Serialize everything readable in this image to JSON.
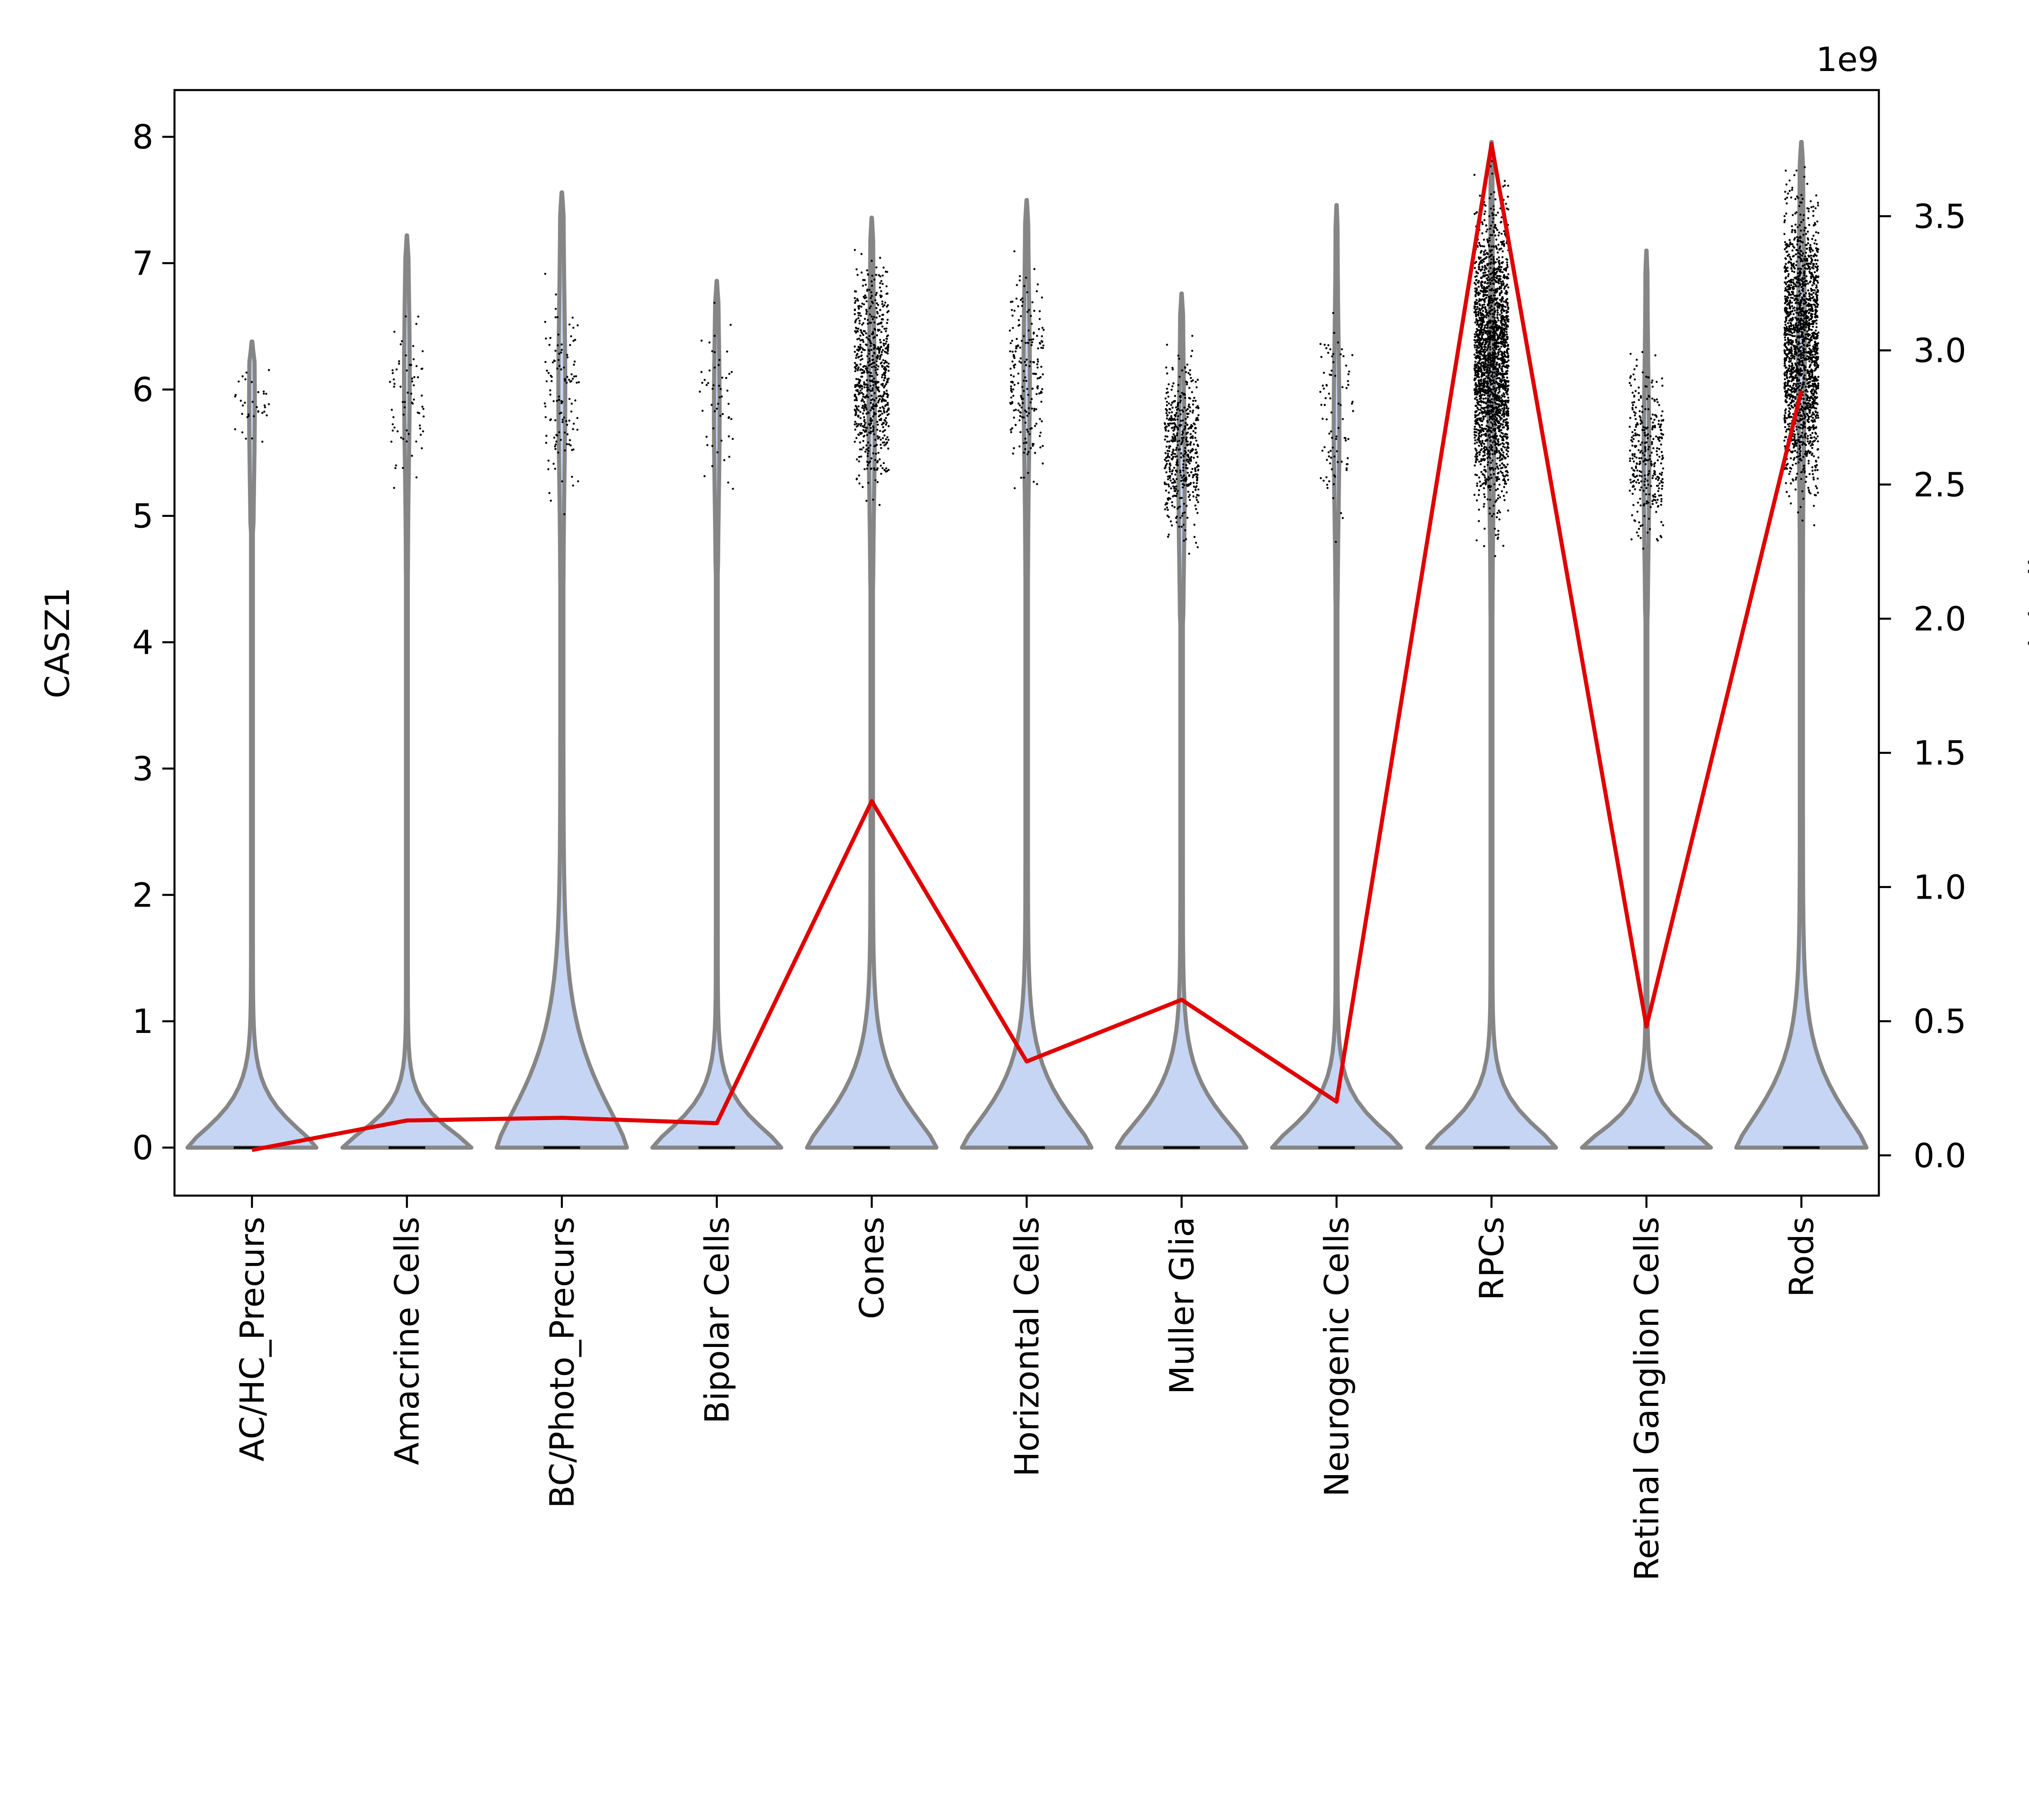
{
  "chart_data": {
    "type": "violin+line",
    "categories": [
      "AC/HC_Precurs",
      "Amacrine Cells",
      "BC/Photo_Precurs",
      "Bipolar Cells",
      "Cones",
      "Horizontal Cells",
      "Muller Glia",
      "Neurogenic Cells",
      "RPCs",
      "Retinal Ganglion Cells",
      "Rods"
    ],
    "left_axis": {
      "label": "CASZ1",
      "ylim": [
        -0.38,
        8.37
      ],
      "ticks": [
        0,
        1,
        2,
        3,
        4,
        5,
        6,
        7,
        8
      ]
    },
    "right_axis": {
      "label": "Pseudobulk",
      "offset_label": "1e9",
      "ylim": [
        -0.15,
        3.97
      ],
      "ticks": [
        "0.0",
        "0.5",
        "1.0",
        "1.5",
        "2.0",
        "2.5",
        "3.0",
        "3.5"
      ]
    },
    "violins": [
      {
        "max": 6.38,
        "half_width_at_zero": 0.41,
        "tail_width": 0.3,
        "neck": 0.6,
        "points_min": 5.3,
        "points_max": 6.4,
        "points_center": 5.9,
        "points_count": 35
      },
      {
        "max": 7.22,
        "half_width_at_zero": 0.41,
        "tail_width": 0.3,
        "neck": 0.5,
        "points_min": 5.0,
        "points_max": 6.9,
        "points_center": 6.1,
        "points_count": 70
      },
      {
        "max": 7.56,
        "half_width_at_zero": 0.41,
        "tail_width": 0.5,
        "neck": 1.3,
        "points_min": 4.9,
        "points_max": 7.0,
        "points_center": 6.0,
        "points_count": 120
      },
      {
        "max": 6.86,
        "half_width_at_zero": 0.41,
        "tail_width": 0.3,
        "neck": 0.6,
        "points_min": 5.0,
        "points_max": 6.8,
        "points_center": 5.8,
        "points_count": 55
      },
      {
        "max": 7.36,
        "half_width_at_zero": 0.41,
        "tail_width": 0.4,
        "neck": 0.9,
        "points_min": 4.9,
        "points_max": 7.3,
        "points_center": 5.8,
        "points_count": 700
      },
      {
        "max": 7.5,
        "half_width_at_zero": 0.41,
        "tail_width": 0.4,
        "neck": 0.9,
        "points_min": 4.9,
        "points_max": 7.3,
        "points_center": 6.1,
        "points_count": 220
      },
      {
        "max": 6.76,
        "half_width_at_zero": 0.41,
        "tail_width": 0.4,
        "neck": 0.8,
        "points_min": 4.6,
        "points_max": 6.5,
        "points_center": 5.3,
        "points_count": 500
      },
      {
        "max": 7.46,
        "half_width_at_zero": 0.41,
        "tail_width": 0.3,
        "neck": 0.6,
        "points_min": 4.7,
        "points_max": 6.9,
        "points_center": 5.7,
        "points_count": 90
      },
      {
        "max": 7.96,
        "half_width_at_zero": 0.41,
        "tail_width": 0.3,
        "neck": 0.6,
        "points_min": 4.6,
        "points_max": 7.9,
        "points_center": 5.8,
        "points_count": 2200
      },
      {
        "max": 7.1,
        "half_width_at_zero": 0.41,
        "tail_width": 0.3,
        "neck": 0.5,
        "points_min": 4.6,
        "points_max": 6.5,
        "points_center": 5.4,
        "points_count": 330
      },
      {
        "max": 7.96,
        "half_width_at_zero": 0.41,
        "tail_width": 0.5,
        "neck": 1.0,
        "points_min": 4.8,
        "points_max": 7.9,
        "points_center": 6.3,
        "points_count": 1800
      }
    ],
    "pseudobulk": [
      0.02,
      0.13,
      0.14,
      0.12,
      1.32,
      0.35,
      0.58,
      0.2,
      3.77,
      0.48,
      2.85
    ],
    "colors": {
      "violin_fill": "#c6d5f3",
      "violin_edge": "#868686",
      "line": "#e00000",
      "points": "#000000"
    }
  }
}
